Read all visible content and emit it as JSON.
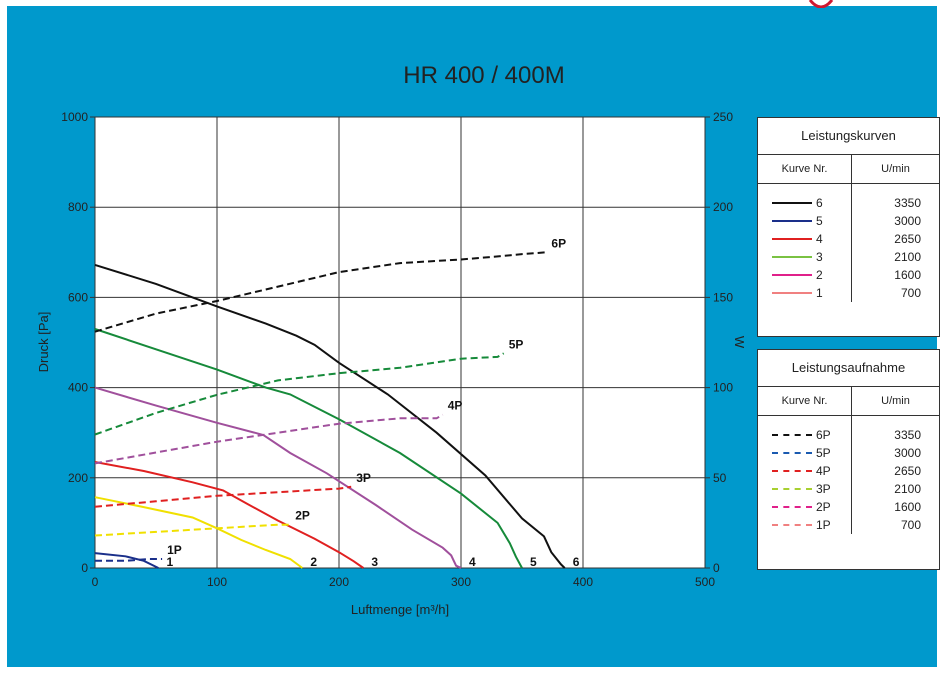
{
  "chart_data": {
    "type": "line",
    "title": "HR 400 / 400M",
    "xlabel": "Luftmenge [m³/h]",
    "ylabel": "Druck [Pa]",
    "y2label": "W",
    "xlim": [
      0,
      500
    ],
    "ylim": [
      0,
      1000
    ],
    "y2lim": [
      0,
      250
    ],
    "xticks": [
      "0",
      "100",
      "200",
      "300",
      "400",
      "500"
    ],
    "yticks": [
      "0",
      "200",
      "400",
      "600",
      "800",
      "1000"
    ],
    "y2ticks": [
      "0",
      "50",
      "100",
      "150",
      "200",
      "250"
    ],
    "grid": true,
    "pressure_series": [
      {
        "name": "6",
        "label": "6",
        "color": "#111111",
        "dash": false,
        "points": [
          [
            0,
            672
          ],
          [
            50,
            630
          ],
          [
            100,
            580
          ],
          [
            140,
            542
          ],
          [
            165,
            515
          ],
          [
            180,
            495
          ],
          [
            200,
            455
          ],
          [
            240,
            385
          ],
          [
            280,
            300
          ],
          [
            320,
            205
          ],
          [
            350,
            110
          ],
          [
            368,
            70
          ],
          [
            374,
            35
          ],
          [
            382,
            8
          ],
          [
            385,
            0
          ]
        ]
      },
      {
        "name": "5",
        "label": "5",
        "color": "#168a3a",
        "dash": false,
        "points": [
          [
            0,
            530
          ],
          [
            50,
            485
          ],
          [
            100,
            440
          ],
          [
            140,
            400
          ],
          [
            160,
            385
          ],
          [
            200,
            330
          ],
          [
            250,
            255
          ],
          [
            300,
            165
          ],
          [
            330,
            100
          ],
          [
            340,
            55
          ],
          [
            345,
            25
          ],
          [
            350,
            0
          ]
        ]
      },
      {
        "name": "4",
        "label": "4",
        "color": "#a0509c",
        "dash": false,
        "points": [
          [
            0,
            400
          ],
          [
            50,
            360
          ],
          [
            100,
            322
          ],
          [
            138,
            295
          ],
          [
            160,
            255
          ],
          [
            190,
            210
          ],
          [
            230,
            140
          ],
          [
            260,
            85
          ],
          [
            285,
            45
          ],
          [
            292,
            28
          ],
          [
            296,
            5
          ],
          [
            300,
            0
          ]
        ]
      },
      {
        "name": "3",
        "label": "3",
        "color": "#e02020",
        "dash": false,
        "points": [
          [
            0,
            235
          ],
          [
            40,
            215
          ],
          [
            80,
            190
          ],
          [
            105,
            172
          ],
          [
            125,
            142
          ],
          [
            150,
            105
          ],
          [
            180,
            65
          ],
          [
            200,
            35
          ],
          [
            212,
            15
          ],
          [
            220,
            0
          ]
        ]
      },
      {
        "name": "2",
        "label": "2",
        "color": "#f0e000",
        "dash": false,
        "points": [
          [
            0,
            157
          ],
          [
            40,
            135
          ],
          [
            80,
            112
          ],
          [
            100,
            88
          ],
          [
            120,
            62
          ],
          [
            140,
            40
          ],
          [
            160,
            20
          ],
          [
            170,
            0
          ]
        ]
      },
      {
        "name": "1",
        "label": "1",
        "color": "#1a2f8a",
        "dash": false,
        "points": [
          [
            0,
            33
          ],
          [
            25,
            26
          ],
          [
            40,
            16
          ],
          [
            52,
            0
          ]
        ]
      }
    ],
    "power_series": [
      {
        "name": "6P",
        "label": "6P",
        "color": "#111111",
        "dash": true,
        "points": [
          [
            0,
            131
          ],
          [
            50,
            141
          ],
          [
            100,
            148
          ],
          [
            150,
            156
          ],
          [
            200,
            164
          ],
          [
            250,
            169
          ],
          [
            300,
            171
          ],
          [
            335,
            173
          ],
          [
            350,
            174
          ],
          [
            370,
            175
          ]
        ]
      },
      {
        "name": "5P",
        "label": "5P",
        "color": "#168a3a",
        "dash": true,
        "points": [
          [
            0,
            74
          ],
          [
            50,
            86
          ],
          [
            100,
            96
          ],
          [
            150,
            104
          ],
          [
            200,
            108
          ],
          [
            250,
            111
          ],
          [
            300,
            116
          ],
          [
            330,
            117
          ],
          [
            335,
            119
          ]
        ]
      },
      {
        "name": "4P",
        "label": "4P",
        "color": "#a0509c",
        "dash": true,
        "points": [
          [
            0,
            58
          ],
          [
            50,
            64
          ],
          [
            100,
            70
          ],
          [
            150,
            75
          ],
          [
            200,
            80
          ],
          [
            250,
            83
          ],
          [
            280,
            83
          ],
          [
            285,
            85
          ]
        ]
      },
      {
        "name": "3P",
        "label": "3P",
        "color": "#e02020",
        "dash": true,
        "points": [
          [
            0,
            34
          ],
          [
            50,
            37
          ],
          [
            100,
            40
          ],
          [
            150,
            42
          ],
          [
            200,
            44
          ],
          [
            210,
            45
          ]
        ]
      },
      {
        "name": "2P",
        "label": "2P",
        "color": "#f0e000",
        "dash": true,
        "points": [
          [
            0,
            18
          ],
          [
            50,
            20
          ],
          [
            100,
            22
          ],
          [
            150,
            24
          ],
          [
            160,
            24
          ]
        ]
      },
      {
        "name": "1P",
        "label": "1P",
        "color": "#1a2f8a",
        "dash": true,
        "points": [
          [
            0,
            4
          ],
          [
            25,
            4
          ],
          [
            45,
            5
          ],
          [
            55,
            5
          ]
        ]
      }
    ]
  },
  "legend_curves": {
    "title": "Leistungskurven",
    "col1": "Kurve Nr.",
    "col2": "U/min",
    "rows": [
      {
        "label": "6",
        "rpm": "3350",
        "color": "#111111"
      },
      {
        "label": "5",
        "rpm": "3000",
        "color": "#1a2f8a"
      },
      {
        "label": "4",
        "rpm": "2650",
        "color": "#e02020"
      },
      {
        "label": "3",
        "rpm": "2100",
        "color": "#7ac242"
      },
      {
        "label": "2",
        "rpm": "1600",
        "color": "#e0208a"
      },
      {
        "label": "1",
        "rpm": "700",
        "color": "#f08080"
      }
    ]
  },
  "legend_power": {
    "title": "Leistungsaufnahme",
    "col1": "Kurve Nr.",
    "col2": "U/min",
    "rows": [
      {
        "label": "6P",
        "rpm": "3350",
        "color": "#111111"
      },
      {
        "label": "5P",
        "rpm": "3000",
        "color": "#1a5ab0"
      },
      {
        "label": "4P",
        "rpm": "2650",
        "color": "#e02020"
      },
      {
        "label": "3P",
        "rpm": "2100",
        "color": "#a8d030"
      },
      {
        "label": "2P",
        "rpm": "1600",
        "color": "#e0208a"
      },
      {
        "label": "1P",
        "rpm": "700",
        "color": "#f08080"
      }
    ]
  }
}
